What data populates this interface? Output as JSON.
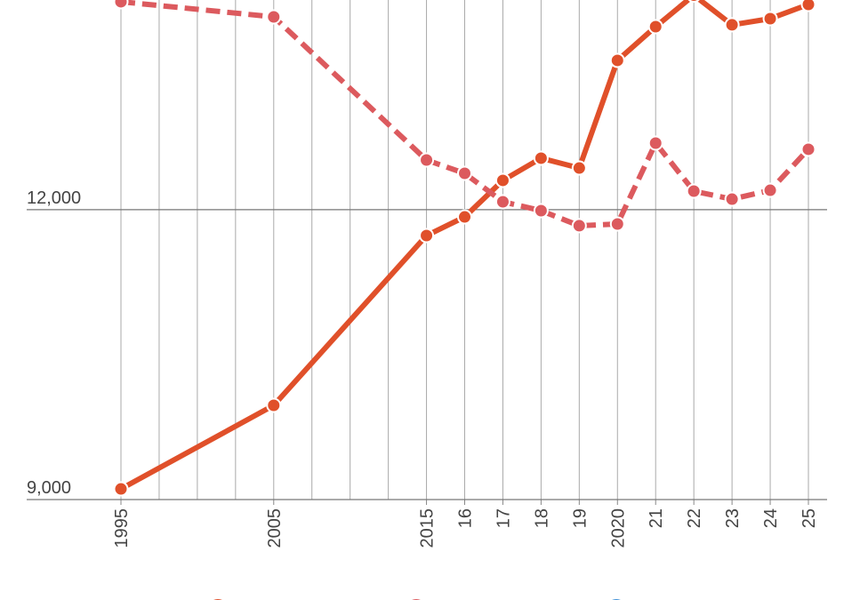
{
  "chart_data": {
    "type": "line",
    "x": [
      0,
      4,
      8,
      9,
      10,
      11,
      12,
      13,
      14,
      15,
      16,
      17,
      18
    ],
    "xlim": [
      0,
      18
    ],
    "xticks": [
      {
        "value": 0,
        "label": "1995"
      },
      {
        "value": 4,
        "label": "2005"
      },
      {
        "value": 8,
        "label": "2015"
      },
      {
        "value": 9,
        "label": "16"
      },
      {
        "value": 10,
        "label": "17"
      },
      {
        "value": 11,
        "label": "18"
      },
      {
        "value": 12,
        "label": "19"
      },
      {
        "value": 13,
        "label": "2020"
      },
      {
        "value": 14,
        "label": "21"
      },
      {
        "value": 15,
        "label": "22"
      },
      {
        "value": 16,
        "label": "23"
      },
      {
        "value": 17,
        "label": "24"
      },
      {
        "value": 18,
        "label": "25"
      }
    ],
    "ylim": [
      9000,
      14170
    ],
    "yticks": [
      {
        "value": 9000,
        "label": "9,000"
      },
      {
        "value": 12000,
        "label": "12,000"
      }
    ],
    "grid": true,
    "series": [
      {
        "color": "#e0502a",
        "dash": false,
        "values": [
          9110,
          9975,
          11732,
          11925,
          12303,
          12533,
          12431,
          13545,
          13894,
          14220,
          13913,
          13977,
          14124
        ]
      },
      {
        "color": "#dc5a5e",
        "dash": true,
        "values": [
          14152,
          13995,
          12514,
          12376,
          12082,
          11990,
          11834,
          11852,
          12689,
          12192,
          12109,
          12201,
          12625
        ]
      }
    ]
  }
}
